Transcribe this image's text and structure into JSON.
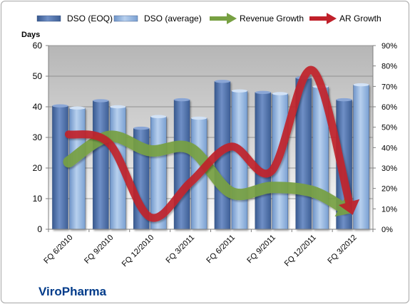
{
  "chart_data": {
    "type": "bar",
    "y_left_label": "Days",
    "y_left_ticks": [
      "0",
      "10",
      "20",
      "30",
      "40",
      "50",
      "60"
    ],
    "y_left_range": [
      0,
      60
    ],
    "y_right_ticks": [
      "0%",
      "10%",
      "20%",
      "30%",
      "40%",
      "50%",
      "60%",
      "70%",
      "80%",
      "90%"
    ],
    "y_right_range": [
      0,
      90
    ],
    "categories": [
      "FQ 6/2010",
      "FQ 9/2010",
      "FQ 12/2010",
      "FQ 3/2011",
      "FQ 6/2011",
      "FQ 9/2011",
      "FQ 12/2011",
      "FQ 3/2012"
    ],
    "bar_series": [
      {
        "name": "DSO (EOQ)",
        "color": "#4f6fa8",
        "values": [
          40.3,
          42.0,
          33.0,
          42.3,
          48.3,
          44.7,
          49.5,
          42.3
        ]
      },
      {
        "name": "DSO (average)",
        "color": "#8fb2df",
        "values": [
          39.6,
          40.0,
          36.8,
          36.3,
          45.2,
          44.3,
          46.6,
          47.2
        ]
      }
    ],
    "line_series": [
      {
        "name": "Revenue Growth",
        "color": "#77a042",
        "values": [
          33,
          45.5,
          38.5,
          39.5,
          18,
          20.5,
          18.5,
          8
        ]
      },
      {
        "name": "AR Growth",
        "color": "#c0202a",
        "values": [
          46.5,
          42,
          6,
          23,
          40.5,
          28.5,
          78,
          7
        ]
      }
    ],
    "grid": true,
    "legend_position": "top"
  },
  "company": "ViroPharma"
}
